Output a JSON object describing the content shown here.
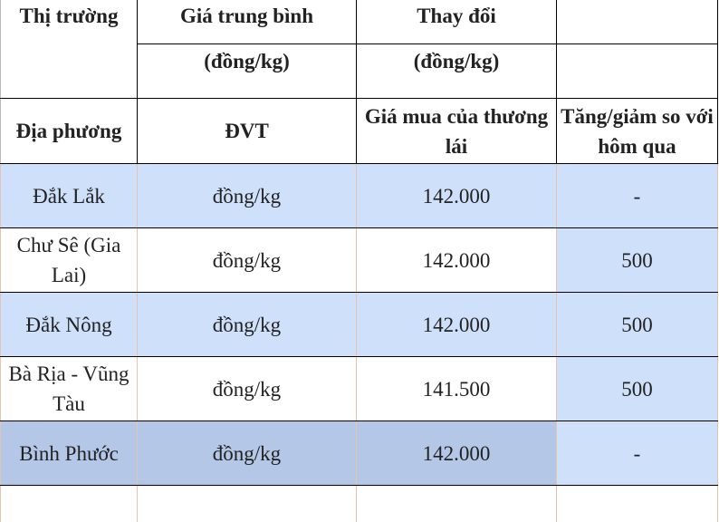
{
  "header": {
    "row1": [
      "Thị trường",
      "Giá trung bình",
      "Thay đổi",
      ""
    ],
    "row2": [
      "(đồng/kg)",
      "(đồng/kg)",
      ""
    ],
    "row3": [
      "Địa phương",
      "ĐVT",
      "Giá mua của thương lái",
      "Tăng/giảm so với hôm qua"
    ]
  },
  "rows": [
    {
      "region": "Đắk Lắk",
      "unit": "đồng/kg",
      "price": "142.000",
      "change": "-"
    },
    {
      "region": "Chư Sê (Gia Lai)",
      "unit": "đồng/kg",
      "price": "142.000",
      "change": "500"
    },
    {
      "region": "Đắk Nông",
      "unit": "đồng/kg",
      "price": "142.000",
      "change": "500"
    },
    {
      "region": "Bà Rịa - Vũng Tàu",
      "unit": "đồng/kg",
      "price": "141.500",
      "change": "500"
    },
    {
      "region": "Bình Phước",
      "unit": "đồng/kg",
      "price": "142.000",
      "change": "-"
    }
  ],
  "colors": {
    "light_blue": "#cfe0fb",
    "dark_blue": "#b4c7e7"
  }
}
